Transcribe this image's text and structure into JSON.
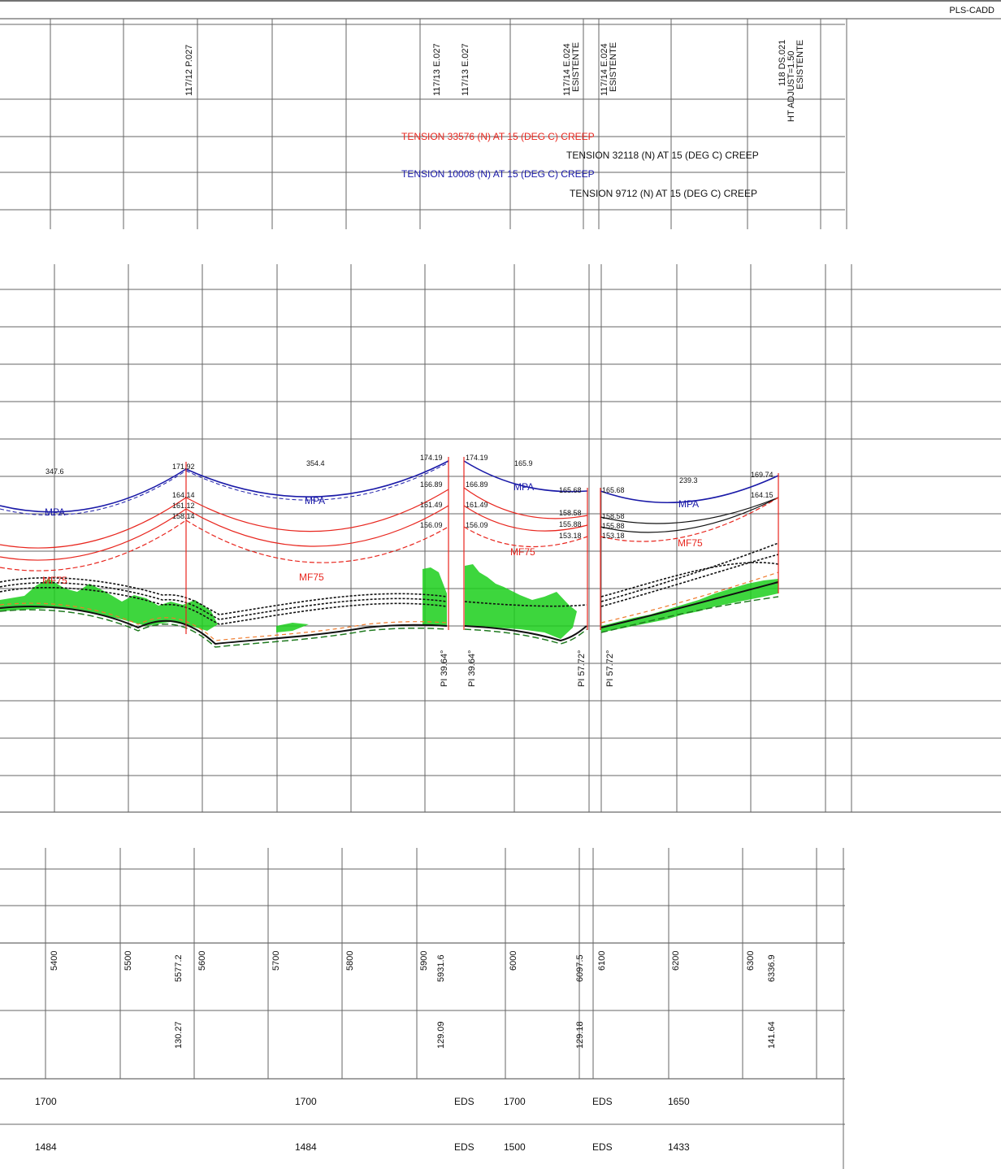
{
  "app": {
    "title": "PLS-CADD"
  },
  "colors": {
    "grid": "#555555",
    "red": "#e8261e",
    "blue": "#1a1aa8",
    "black": "#111111",
    "green": "#1ccf1c",
    "dark_green": "#1f7a1f",
    "orange": "#f07a2a"
  },
  "structures": [
    {
      "id": "117/12 P.027"
    },
    {
      "id": "117/13 E.027"
    },
    {
      "id": "117/13 E.027"
    },
    {
      "id": "117/14 E.024",
      "note": "ESISTENTE"
    },
    {
      "id": "117/14 E.024",
      "note": "ESISTENTE"
    },
    {
      "id": "118 DS.021",
      "note": "HT ADJUST=1.50",
      "note2": "ESISTENTE"
    }
  ],
  "tensions": [
    {
      "text": "TENSION 33576 (N) AT 15 (DEG C) CREEP",
      "color": "red"
    },
    {
      "text": "TENSION 32118 (N) AT 15 (DEG C) CREEP",
      "color": "black"
    },
    {
      "text": "TENSION 10008 (N) AT 15 (DEG C) CREEP",
      "color": "blue"
    },
    {
      "text": "TENSION 9712 (N) AT 15 (DEG C) CREEP",
      "color": "black"
    }
  ],
  "profile": {
    "span_lengths": [
      "347.6",
      "354.4",
      "165.9",
      "239.3"
    ],
    "attach_left": [
      "171.92",
      "164.14",
      "161.12",
      "158.14"
    ],
    "attach_mid_left": [
      "174.19",
      "166.89",
      "161.49",
      "156.09"
    ],
    "attach_mid_right": [
      "174.19",
      "166.89",
      "161.49",
      "156.09"
    ],
    "attach_e024_left": [
      "165.68",
      "158.58",
      "155.88",
      "153.18"
    ],
    "attach_e024_right": [
      "165.68",
      "158.58",
      "155.88",
      "153.18"
    ],
    "attach_right": [
      "169.74",
      "164.15"
    ],
    "labels": {
      "mpa": "MPA",
      "mf75": "MF75"
    },
    "pi_angles": [
      "PI 39.64°",
      "PI 39.64°",
      "PI 57.72°",
      "PI 57.72°"
    ]
  },
  "stations": [
    "5400",
    "5500",
    "5577.2",
    "5600",
    "5700",
    "5800",
    "5900",
    "5931.6",
    "6000",
    "6097.5",
    "6100",
    "6200",
    "6300",
    "6336.9"
  ],
  "ground_elevations": [
    "130.27",
    "129.09",
    "129.18",
    "141.64"
  ],
  "table": {
    "row1": [
      "1700",
      "1700",
      "EDS",
      "1700",
      "EDS",
      "1650"
    ],
    "row2": [
      "1484",
      "1484",
      "EDS",
      "1500",
      "EDS",
      "1433"
    ]
  }
}
